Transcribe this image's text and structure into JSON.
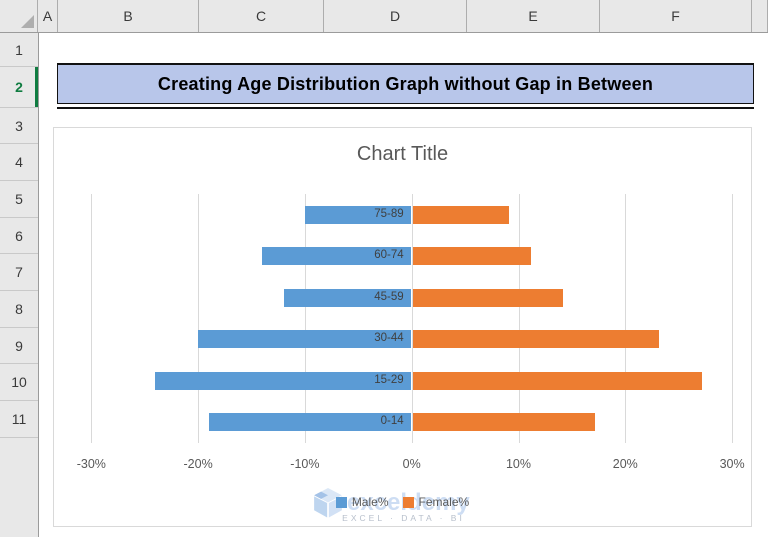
{
  "spreadsheet": {
    "column_headers": [
      "A",
      "B",
      "C",
      "D",
      "E",
      "F"
    ],
    "row_headers": [
      "1",
      "2",
      "3",
      "4",
      "5",
      "6",
      "7",
      "8",
      "9",
      "10",
      "11"
    ],
    "selected_row": "2"
  },
  "banner": {
    "text": "Creating Age Distribution Graph without Gap in Between",
    "fill_color": "#B8C6EA"
  },
  "chart_data": {
    "type": "bar",
    "orientation": "horizontal-pyramid",
    "title": "Chart Title",
    "categories": [
      "75-89",
      "60-74",
      "45-59",
      "30-44",
      "15-29",
      "0-14"
    ],
    "series": [
      {
        "name": "Male%",
        "color": "#5B9BD5",
        "values": [
          -10,
          -14,
          -12,
          -20,
          -24,
          -19
        ]
      },
      {
        "name": "Female%",
        "color": "#ED7D31",
        "values": [
          9,
          11,
          14,
          23,
          27,
          17
        ]
      }
    ],
    "x_axis": {
      "tick_values": [
        -30,
        -20,
        -10,
        0,
        10,
        20,
        30
      ],
      "tick_labels": [
        "-30%",
        "-20%",
        "-10%",
        "0%",
        "10%",
        "20%",
        "30%"
      ],
      "range": [
        -30,
        30
      ]
    },
    "legend": {
      "position": "bottom",
      "entries": [
        "Male%",
        "Female%"
      ]
    },
    "grid": true
  },
  "watermark": {
    "brand": "exceldemy",
    "tagline": "EXCEL · DATA · BI"
  },
  "colors": {
    "male_bar": "#5B9BD5",
    "female_bar": "#ED7D31",
    "gridline": "#D9D9D9",
    "axis_text": "#595959",
    "category_text": "#404040",
    "header_bg": "#E8E8E8",
    "selected_row_accent": "#107C41",
    "banner_fill": "#B8C6EA"
  }
}
